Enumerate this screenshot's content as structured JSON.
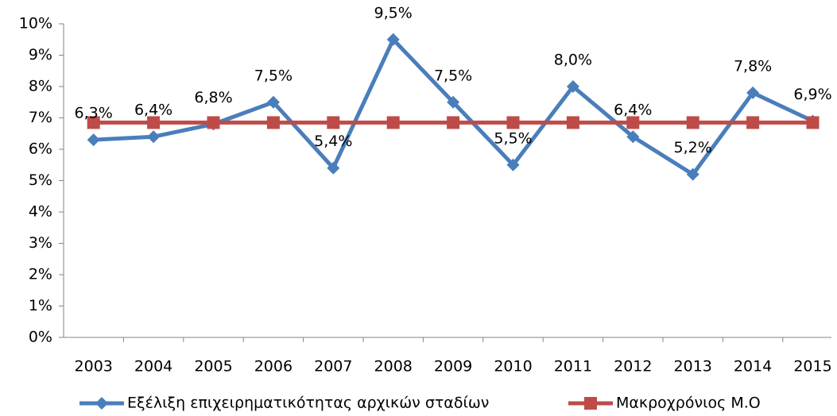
{
  "chart_data": {
    "type": "line",
    "categories": [
      "2003",
      "2004",
      "2005",
      "2006",
      "2007",
      "2008",
      "2009",
      "2010",
      "2011",
      "2012",
      "2013",
      "2014",
      "2015"
    ],
    "series": [
      {
        "name": "Εξέλιξη επιχειρηματικότητας αρχικών σταδίων",
        "color": "#4a7ebb",
        "marker": "diamond",
        "values": [
          6.3,
          6.4,
          6.8,
          7.5,
          5.4,
          9.5,
          7.5,
          5.5,
          8.0,
          6.4,
          5.2,
          7.8,
          6.9
        ],
        "value_labels": [
          "6,3%",
          "6,4%",
          "6,8%",
          "7,5%",
          "5,4%",
          "9,5%",
          "7,5%",
          "5,5%",
          "8,0%",
          "6,4%",
          "5,2%",
          "7,8%",
          "6,9%"
        ]
      },
      {
        "name": "Μακροχρόνιος Μ.Ο",
        "color": "#be4b48",
        "marker": "square",
        "values": [
          6.85,
          6.85,
          6.85,
          6.85,
          6.85,
          6.85,
          6.85,
          6.85,
          6.85,
          6.85,
          6.85,
          6.85,
          6.85
        ]
      }
    ],
    "ylim": [
      0,
      10
    ],
    "yticks": [
      {
        "value": 0,
        "label": "0%"
      },
      {
        "value": 1,
        "label": "1%"
      },
      {
        "value": 2,
        "label": "2%"
      },
      {
        "value": 3,
        "label": "3%"
      },
      {
        "value": 4,
        "label": "4%"
      },
      {
        "value": 5,
        "label": "5%"
      },
      {
        "value": 6,
        "label": "6%"
      },
      {
        "value": 7,
        "label": "7%"
      },
      {
        "value": 8,
        "label": "8%"
      },
      {
        "value": 9,
        "label": "9%"
      },
      {
        "value": 10,
        "label": "10%"
      }
    ],
    "grid": false,
    "legend": "bottom"
  }
}
